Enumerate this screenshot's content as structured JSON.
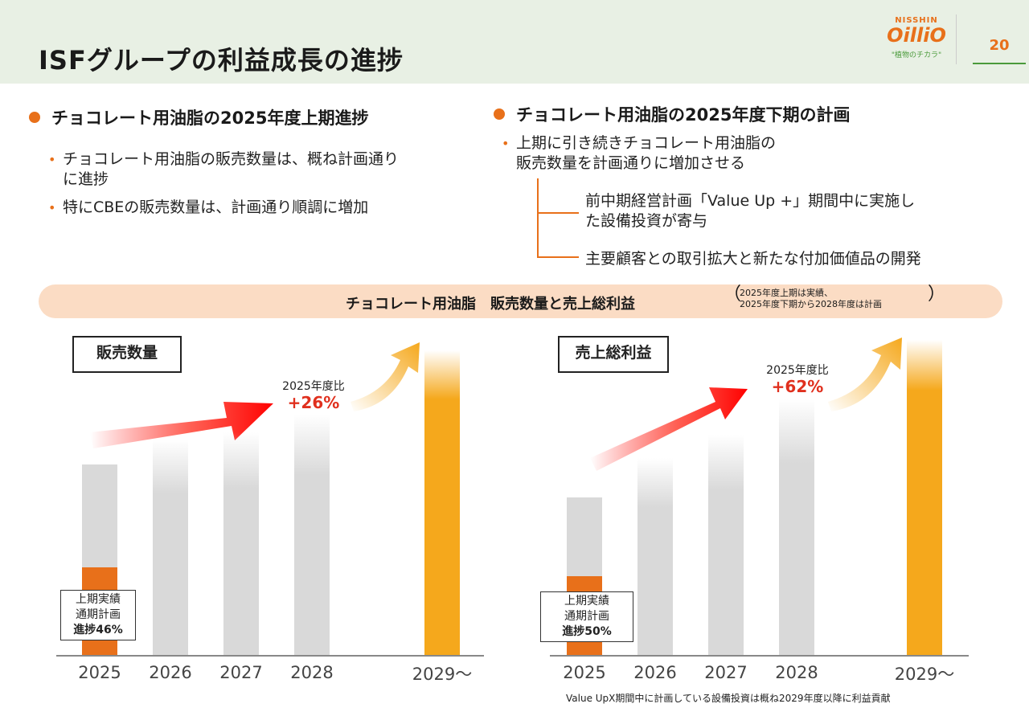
{
  "header": {
    "title": "ISFグループの利益成長の進捗",
    "logo_top": "NISSHIN",
    "logo_main": "OilliO",
    "logo_tagline": "\"植物のチカラ\"",
    "page_number": "20"
  },
  "left_section": {
    "heading": "チョコレート用油脂の2025年度上期進捗",
    "bullets": [
      "チョコレート用油脂の販売数量は、概ね計画通り",
      "に進捗",
      "特にCBEの販売数量は、計画通り順調に増加"
    ]
  },
  "right_section": {
    "heading": "チョコレート用油脂の2025年度下期の計画",
    "bullet_lines": [
      "上期に引き続きチョコレート用油脂の",
      "販売数量を計画通りに増加させる"
    ],
    "sub_items": [
      "前中期経営計画「Value Up +」期間中に実施し",
      "た設備投資が寄与",
      "主要顧客との取引拡大と新たな付加価値品の開発"
    ]
  },
  "banner": {
    "title": "チョコレート用油脂　販売数量と売上総利益",
    "note_line1": "2025年度上期は実績、",
    "note_line2": "2025年度下期から2028年度は計画",
    "paren_open": "（",
    "paren_close": "）"
  },
  "colors": {
    "orange": "#e8701a",
    "green": "#4a9a3a",
    "bar_gray": "#d9d9d9",
    "bar_yellow": "#f5a81c",
    "growth_red": "#e0301e"
  },
  "chart_data": [
    {
      "type": "bar",
      "label": "販売数量",
      "categories": [
        "2025",
        "2026",
        "2027",
        "2028",
        "2029～"
      ],
      "values": [
        100,
        113,
        117,
        126,
        160
      ],
      "first_half_actual_2025": 46,
      "growth_caption": "2025年度比",
      "growth_value": "+26%",
      "note_lines": [
        "上期実績",
        "通期計画",
        "進捗46%"
      ]
    },
    {
      "type": "bar",
      "label": "売上総利益",
      "categories": [
        "2025",
        "2026",
        "2027",
        "2028",
        "2029～"
      ],
      "values": [
        100,
        125,
        140,
        162,
        200
      ],
      "first_half_actual_2025": 50,
      "growth_caption": "2025年度比",
      "growth_value": "+62%",
      "note_lines": [
        "上期実績",
        "通期計画",
        "進捗50%"
      ]
    }
  ],
  "footnote": "Value UpX期間中に計画している設備投資は概ね2029年度以降に利益貢献"
}
